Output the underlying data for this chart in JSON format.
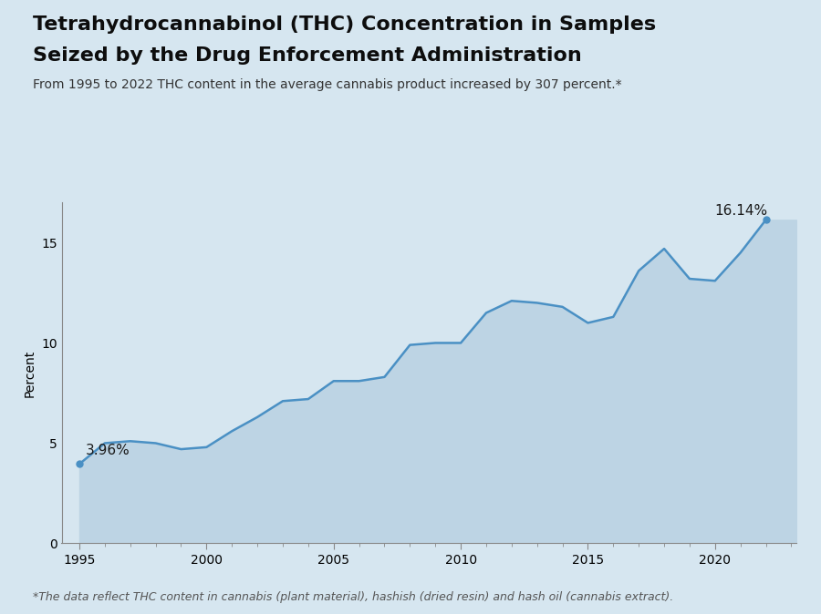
{
  "years": [
    1995,
    1996,
    1997,
    1998,
    1999,
    2000,
    2001,
    2002,
    2003,
    2004,
    2005,
    2006,
    2007,
    2008,
    2009,
    2010,
    2011,
    2012,
    2013,
    2014,
    2015,
    2016,
    2017,
    2018,
    2019,
    2020,
    2021,
    2022
  ],
  "values": [
    3.96,
    5.0,
    5.1,
    5.0,
    4.7,
    4.8,
    5.6,
    6.3,
    7.1,
    7.2,
    8.1,
    8.1,
    8.3,
    9.9,
    10.0,
    10.0,
    11.5,
    12.1,
    12.0,
    11.8,
    11.0,
    11.3,
    13.6,
    14.7,
    13.2,
    13.1,
    14.5,
    16.14
  ],
  "line_color": "#4a90c4",
  "fill_color": "#bdd4e4",
  "line_width": 1.8,
  "title_line1": "Tetrahydrocannabinol (THC) Concentration in Samples",
  "title_line2": "Seized by the Drug Enforcement Administration",
  "subtitle": "From 1995 to 2022 THC content in the average cannabis product increased by 307 percent.*",
  "ylabel": "Percent",
  "footnote": "*The data reflect THC content in cannabis (plant material), hashish (dried resin) and hash oil (cannabis extract).",
  "start_label": "3.96%",
  "end_label": "16.14%",
  "ylim": [
    0,
    17
  ],
  "yticks": [
    0,
    5,
    10,
    15
  ],
  "xlim_left": 1994.3,
  "xlim_right": 2023.2,
  "bg_color": "#d6e6f0",
  "fig_bg_color": "#d6e6f0",
  "title_fontsize": 16,
  "subtitle_fontsize": 10,
  "axis_fontsize": 10,
  "footnote_fontsize": 9
}
